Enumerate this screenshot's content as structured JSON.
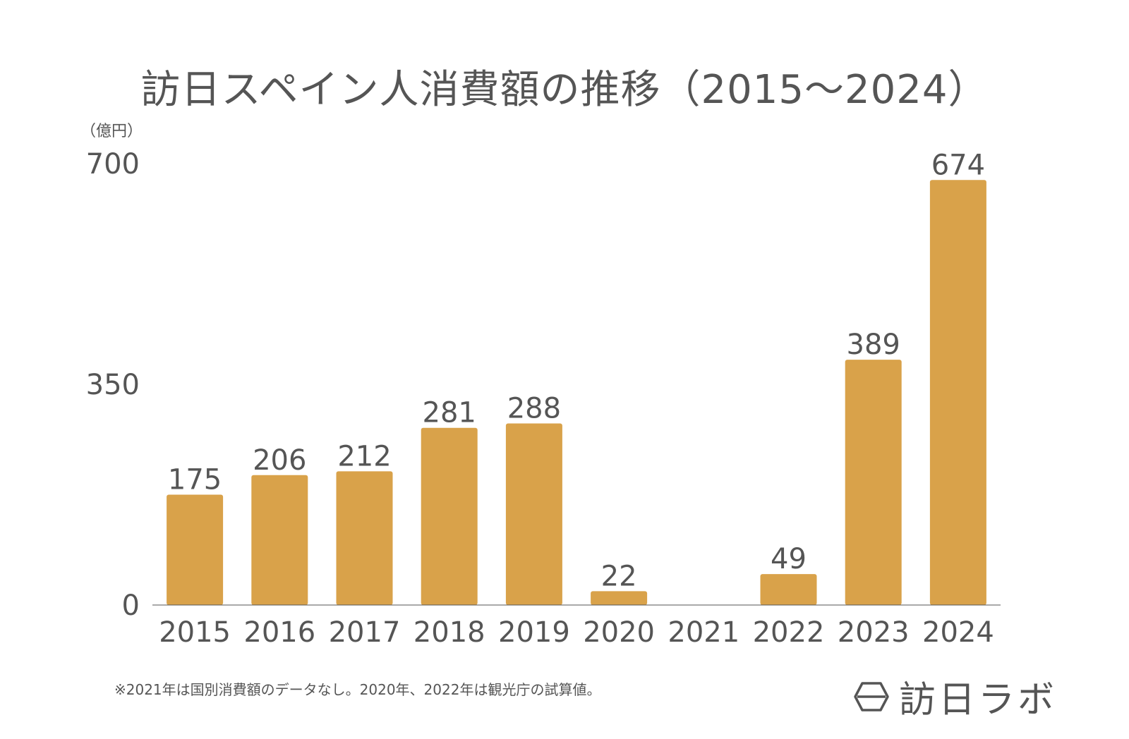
{
  "title": "訪日スペイン人消費額の推移（2015〜2024）",
  "unit_label": "（億円）",
  "note": "※2021年は国別消費額のデータなし。2020年、2022年は観光庁の試算値。",
  "logo": {
    "text": "訪日ラボ",
    "icon": "hexagon-logo-icon"
  },
  "colors": {
    "bar": "#D9A24A",
    "text": "#555555",
    "axis": "#555555"
  },
  "chart_data": {
    "type": "bar",
    "categories": [
      "2015",
      "2016",
      "2017",
      "2018",
      "2019",
      "2020",
      "2021",
      "2022",
      "2023",
      "2024"
    ],
    "values": [
      175,
      206,
      212,
      281,
      288,
      22,
      null,
      49,
      389,
      674
    ],
    "data_labels": [
      "175",
      "206",
      "212",
      "281",
      "288",
      "22",
      "",
      "49",
      "389",
      "674"
    ],
    "yticks": [
      0,
      350,
      700
    ],
    "ylim": [
      0,
      700
    ],
    "grid": false,
    "legend": "none"
  }
}
